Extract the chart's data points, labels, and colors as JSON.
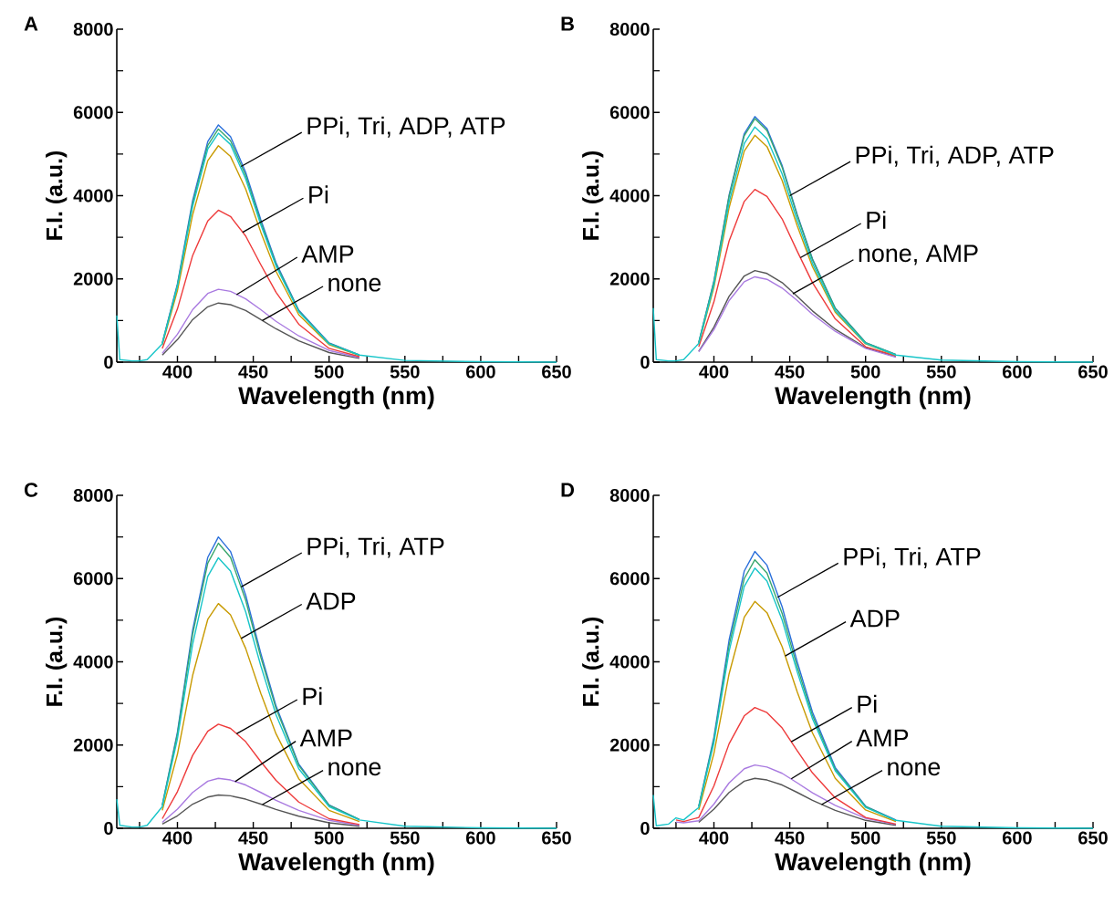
{
  "chart_data": [
    {
      "type": "line",
      "title": "A",
      "xlabel": "Wavelength (nm)",
      "ylabel": "F.I. (a.u.)",
      "xlim": [
        360,
        650
      ],
      "ylim": [
        0,
        8000
      ],
      "xticks": [
        {
          "value": 375,
          "label": null
        },
        400,
        {
          "value": 425,
          "label": null
        },
        450,
        {
          "value": 475,
          "label": null
        },
        500,
        {
          "value": 525,
          "label": null
        },
        550,
        {
          "value": 575,
          "label": null
        },
        600,
        {
          "value": 625,
          "label": null
        },
        650
      ],
      "yticks": [
        0,
        {
          "value": 1000,
          "label": null
        },
        2000,
        {
          "value": 3000,
          "label": null
        },
        4000,
        {
          "value": 5000,
          "label": null
        },
        6000,
        {
          "value": 7000,
          "label": null
        },
        8000
      ],
      "x": [
        360,
        362,
        370,
        375,
        380,
        390,
        400,
        410,
        420,
        427,
        435,
        445,
        455,
        465,
        480,
        500,
        520,
        550,
        600,
        650
      ],
      "series": [
        {
          "color": "#555555",
          "values": [
            null,
            null,
            null,
            null,
            null,
            170,
            540,
            1020,
            1330,
            1420,
            1380,
            1240,
            1020,
            800,
            510,
            230,
            90,
            null,
            null,
            null
          ]
        },
        {
          "color": "#a97ae0",
          "values": [
            null,
            null,
            null,
            null,
            null,
            210,
            670,
            1260,
            1650,
            1750,
            1700,
            1520,
            1260,
            980,
            630,
            280,
            110,
            null,
            null,
            null
          ]
        },
        {
          "color": "#ee3a3a",
          "values": [
            null,
            null,
            null,
            null,
            null,
            330,
            1280,
            2560,
            3390,
            3650,
            3500,
            3030,
            2340,
            1680,
            910,
            330,
            130,
            null,
            null,
            null
          ]
        },
        {
          "color": "#c89a00",
          "values": [
            null,
            null,
            null,
            null,
            null,
            420,
            1720,
            3540,
            4840,
            5200,
            4940,
            4160,
            3120,
            2180,
            1140,
            420,
            160,
            null,
            null,
            null
          ]
        },
        {
          "color": "#2a6fdb",
          "values": [
            null,
            null,
            null,
            null,
            null,
            460,
            1880,
            3880,
            5300,
            5700,
            5420,
            4560,
            3420,
            2390,
            1250,
            460,
            170,
            null,
            null,
            null
          ]
        },
        {
          "color": "#3aa76d",
          "values": [
            null,
            null,
            null,
            null,
            null,
            450,
            1850,
            3810,
            5210,
            5600,
            5320,
            4480,
            3360,
            2350,
            1230,
            450,
            170,
            null,
            null,
            null
          ]
        },
        {
          "color": "#17c5c9",
          "values": [
            1120,
            60,
            30,
            30,
            60,
            440,
            1820,
            3740,
            5120,
            5500,
            5230,
            4400,
            3300,
            2310,
            1210,
            440,
            170,
            40,
            10,
            0
          ]
        }
      ],
      "annotations": [
        {
          "text": "PPi, Tri, ADP, ATP",
          "x": 442,
          "y": 4700
        },
        {
          "text": "Pi",
          "x": 443,
          "y": 3120
        },
        {
          "text": "AMP",
          "x": 439,
          "y": 1620
        },
        {
          "text": "none",
          "x": 456,
          "y": 1000
        }
      ]
    },
    {
      "type": "line",
      "title": "B",
      "xlabel": "Wavelength (nm)",
      "ylabel": "F.I. (a.u.)",
      "xlim": [
        360,
        650
      ],
      "ylim": [
        0,
        8000
      ],
      "xticks": [
        {
          "value": 375,
          "label": null
        },
        400,
        {
          "value": 425,
          "label": null
        },
        450,
        {
          "value": 475,
          "label": null
        },
        500,
        {
          "value": 525,
          "label": null
        },
        550,
        {
          "value": 575,
          "label": null
        },
        600,
        {
          "value": 625,
          "label": null
        },
        650
      ],
      "yticks": [
        0,
        {
          "value": 1000,
          "label": null
        },
        2000,
        {
          "value": 3000,
          "label": null
        },
        4000,
        {
          "value": 5000,
          "label": null
        },
        6000,
        {
          "value": 7000,
          "label": null
        },
        8000
      ],
      "x": [
        360,
        362,
        370,
        375,
        380,
        390,
        400,
        410,
        420,
        427,
        435,
        445,
        455,
        465,
        480,
        500,
        520,
        550,
        600,
        650
      ],
      "series": [
        {
          "color": "#555555",
          "values": [
            null,
            null,
            null,
            null,
            null,
            260,
            840,
            1580,
            2070,
            2200,
            2130,
            1910,
            1580,
            1230,
            790,
            350,
            130,
            null,
            null,
            null
          ]
        },
        {
          "color": "#a97ae0",
          "values": [
            null,
            null,
            null,
            null,
            null,
            250,
            780,
            1480,
            1930,
            2050,
            1990,
            1780,
            1480,
            1150,
            740,
            330,
            120,
            null,
            null,
            null
          ]
        },
        {
          "color": "#ee3a3a",
          "values": [
            null,
            null,
            null,
            null,
            null,
            370,
            1450,
            2910,
            3860,
            4150,
            3980,
            3440,
            2660,
            1910,
            1040,
            370,
            150,
            null,
            null,
            null
          ]
        },
        {
          "color": "#c89a00",
          "values": [
            null,
            null,
            null,
            null,
            null,
            440,
            1800,
            3710,
            5070,
            5450,
            5180,
            4360,
            3270,
            2290,
            1200,
            440,
            160,
            null,
            null,
            null
          ]
        },
        {
          "color": "#2a6fdb",
          "values": [
            null,
            null,
            null,
            null,
            null,
            470,
            1950,
            4010,
            5490,
            5900,
            5610,
            4720,
            3540,
            2480,
            1300,
            470,
            180,
            null,
            null,
            null
          ]
        },
        {
          "color": "#3aa76d",
          "values": [
            null,
            null,
            null,
            null,
            null,
            470,
            1930,
            3980,
            5440,
            5850,
            5560,
            4680,
            3510,
            2460,
            1290,
            470,
            180,
            null,
            null,
            null
          ]
        },
        {
          "color": "#17c5c9",
          "values": [
            1300,
            60,
            30,
            30,
            60,
            450,
            1860,
            3840,
            5250,
            5650,
            5370,
            4520,
            3390,
            2370,
            1240,
            450,
            170,
            50,
            10,
            0
          ]
        }
      ],
      "annotations": [
        {
          "text": "PPi, Tri, ADP, ATP",
          "x": 450,
          "y": 4000
        },
        {
          "text": "Pi",
          "x": 457,
          "y": 2510
        },
        {
          "text": "none, AMP",
          "x": 452,
          "y": 1640
        }
      ]
    },
    {
      "type": "line",
      "title": "C",
      "xlabel": "Wavelength (nm)",
      "ylabel": "F.I. (a.u.)",
      "xlim": [
        360,
        650
      ],
      "ylim": [
        0,
        8000
      ],
      "xticks": [
        {
          "value": 375,
          "label": null
        },
        400,
        {
          "value": 425,
          "label": null
        },
        450,
        {
          "value": 475,
          "label": null
        },
        500,
        {
          "value": 525,
          "label": null
        },
        550,
        {
          "value": 575,
          "label": null
        },
        600,
        {
          "value": 625,
          "label": null
        },
        650
      ],
      "yticks": [
        0,
        {
          "value": 1000,
          "label": null
        },
        2000,
        {
          "value": 3000,
          "label": null
        },
        4000,
        {
          "value": 5000,
          "label": null
        },
        6000,
        {
          "value": 7000,
          "label": null
        },
        8000
      ],
      "x": [
        360,
        362,
        370,
        375,
        380,
        390,
        400,
        410,
        420,
        427,
        435,
        445,
        455,
        465,
        480,
        500,
        520,
        550,
        600,
        650
      ],
      "series": [
        {
          "color": "#555555",
          "values": [
            null,
            null,
            null,
            null,
            null,
            100,
            300,
            580,
            750,
            800,
            780,
            700,
            580,
            450,
            290,
            130,
            50,
            null,
            null,
            null
          ]
        },
        {
          "color": "#a97ae0",
          "values": [
            null,
            null,
            null,
            null,
            null,
            140,
            460,
            860,
            1130,
            1200,
            1160,
            1040,
            860,
            670,
            430,
            190,
            70,
            null,
            null,
            null
          ]
        },
        {
          "color": "#ee3a3a",
          "values": [
            null,
            null,
            null,
            null,
            null,
            230,
            880,
            1750,
            2330,
            2500,
            2400,
            2080,
            1600,
            1150,
            630,
            230,
            90,
            null,
            null,
            null
          ]
        },
        {
          "color": "#c89a00",
          "values": [
            null,
            null,
            null,
            null,
            null,
            430,
            1780,
            3670,
            5020,
            5400,
            5130,
            4320,
            3240,
            2270,
            1190,
            430,
            160,
            null,
            null,
            null
          ]
        },
        {
          "color": "#2a6fdb",
          "values": [
            null,
            null,
            null,
            null,
            null,
            560,
            2310,
            4760,
            6510,
            7000,
            6650,
            5600,
            4200,
            2940,
            1540,
            560,
            210,
            null,
            null,
            null
          ]
        },
        {
          "color": "#3aa76d",
          "values": [
            null,
            null,
            null,
            null,
            null,
            550,
            2260,
            4660,
            6370,
            6850,
            6510,
            5480,
            4110,
            2880,
            1510,
            550,
            210,
            null,
            null,
            null
          ]
        },
        {
          "color": "#17c5c9",
          "values": [
            700,
            70,
            30,
            30,
            70,
            520,
            2150,
            4420,
            6050,
            6500,
            6180,
            5200,
            3900,
            2730,
            1430,
            520,
            200,
            50,
            10,
            0
          ]
        }
      ],
      "annotations": [
        {
          "text": "PPi, Tri, ATP",
          "x": 442,
          "y": 5800
        },
        {
          "text": "ADP",
          "x": 442,
          "y": 4560
        },
        {
          "text": "Pi",
          "x": 439,
          "y": 2270
        },
        {
          "text": "AMP",
          "x": 438,
          "y": 1120
        },
        {
          "text": "none",
          "x": 456,
          "y": 570
        }
      ]
    },
    {
      "type": "line",
      "title": "D",
      "xlabel": "Wavelength (nm)",
      "ylabel": "F.I. (a.u.)",
      "xlim": [
        360,
        650
      ],
      "ylim": [
        0,
        8000
      ],
      "xticks": [
        {
          "value": 375,
          "label": null
        },
        400,
        {
          "value": 425,
          "label": null
        },
        450,
        {
          "value": 475,
          "label": null
        },
        500,
        {
          "value": 525,
          "label": null
        },
        550,
        {
          "value": 575,
          "label": null
        },
        600,
        {
          "value": 625,
          "label": null
        },
        650
      ],
      "yticks": [
        0,
        {
          "value": 1000,
          "label": null
        },
        2000,
        {
          "value": 3000,
          "label": null
        },
        4000,
        {
          "value": 5000,
          "label": null
        },
        6000,
        {
          "value": 7000,
          "label": null
        },
        8000
      ],
      "x": [
        360,
        362,
        370,
        375,
        380,
        390,
        400,
        410,
        420,
        427,
        435,
        445,
        455,
        465,
        480,
        500,
        520,
        550,
        600,
        650
      ],
      "series": [
        {
          "color": "#555555",
          "values": [
            null,
            null,
            null,
            null,
            null,
            140,
            460,
            860,
            1130,
            1200,
            1160,
            1040,
            860,
            670,
            430,
            190,
            70,
            null,
            null,
            null
          ]
        },
        {
          "color": "#a97ae0",
          "values": [
            null,
            null,
            null,
            150,
            130,
            180,
            580,
            1090,
            1430,
            1520,
            1470,
            1320,
            1090,
            850,
            550,
            240,
            90,
            null,
            null,
            null
          ]
        },
        {
          "color": "#ee3a3a",
          "values": [
            null,
            null,
            null,
            200,
            160,
            260,
            1020,
            2030,
            2700,
            2900,
            2780,
            2410,
            1860,
            1330,
            730,
            260,
            100,
            null,
            null,
            null
          ]
        },
        {
          "color": "#c89a00",
          "values": [
            null,
            null,
            null,
            null,
            null,
            440,
            1800,
            3710,
            5070,
            5450,
            5180,
            4360,
            3270,
            2290,
            1200,
            440,
            160,
            null,
            null,
            null
          ]
        },
        {
          "color": "#2a6fdb",
          "values": [
            null,
            null,
            null,
            null,
            null,
            530,
            2190,
            4520,
            6180,
            6650,
            6320,
            5320,
            3990,
            2790,
            1460,
            530,
            200,
            null,
            null,
            null
          ]
        },
        {
          "color": "#3aa76d",
          "values": [
            null,
            null,
            null,
            null,
            null,
            520,
            2130,
            4390,
            6000,
            6450,
            6130,
            5160,
            3870,
            2710,
            1420,
            520,
            190,
            null,
            null,
            null
          ]
        },
        {
          "color": "#17c5c9",
          "values": [
            800,
            60,
            100,
            250,
            200,
            500,
            2060,
            4250,
            5810,
            6250,
            5940,
            5000,
            3750,
            2630,
            1380,
            500,
            190,
            50,
            10,
            0
          ]
        }
      ],
      "annotations": [
        {
          "text": "PPi, Tri, ATP",
          "x": 442,
          "y": 5550
        },
        {
          "text": "ADP",
          "x": 447,
          "y": 4140
        },
        {
          "text": "Pi",
          "x": 451,
          "y": 2080
        },
        {
          "text": "AMP",
          "x": 451,
          "y": 1190
        },
        {
          "text": "none",
          "x": 471,
          "y": 570
        }
      ]
    }
  ]
}
